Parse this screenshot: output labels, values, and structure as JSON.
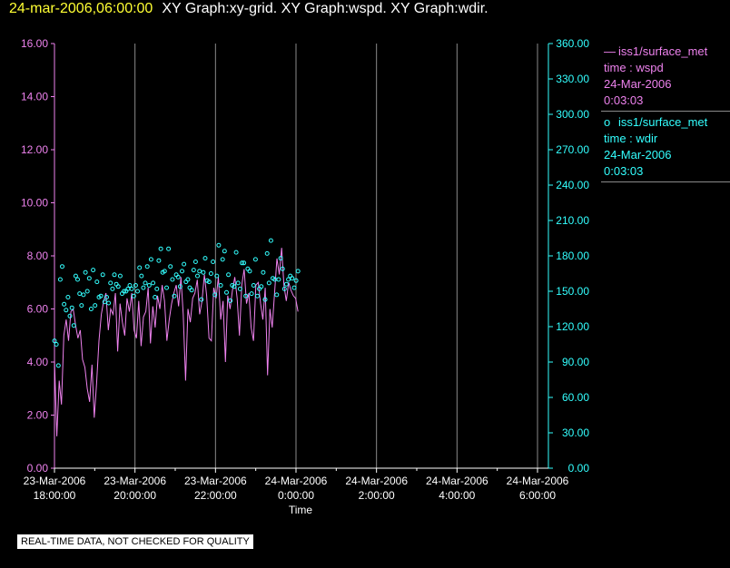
{
  "header": {
    "datetime": "24-mar-2006,06:00:00",
    "title": "XY Graph:xy-grid.  XY Graph:wspd.  XY Graph:wdir."
  },
  "legend": {
    "wspd": {
      "symbol": "—",
      "source": "iss1/surface_met",
      "param": "time : wspd",
      "date": "24-Mar-2006",
      "time": "0:03:03"
    },
    "wdir": {
      "symbol": "o",
      "source": "iss1/surface_met",
      "param": "time : wdir",
      "date": "24-Mar-2006",
      "time": "0:03:03"
    }
  },
  "disclaimer": "REAL-TIME DATA, NOT CHECKED FOR QUALITY",
  "colors": {
    "wspd": "#ee82ee",
    "wdir": "#33ffff",
    "background": "#000000",
    "grid": "#8a8a8a",
    "text": "#ffffff"
  },
  "chart_data": {
    "type": "line",
    "xlabel": "Time",
    "x_ticks": [
      {
        "hours": 0,
        "date": "23-Mar-2006",
        "time": "18:00:00"
      },
      {
        "hours": 2,
        "date": "23-Mar-2006",
        "time": "20:00:00"
      },
      {
        "hours": 4,
        "date": "23-Mar-2006",
        "time": "22:00:00"
      },
      {
        "hours": 6,
        "date": "24-Mar-2006",
        "time": "0:00:00"
      },
      {
        "hours": 8,
        "date": "24-Mar-2006",
        "time": "2:00:00"
      },
      {
        "hours": 10,
        "date": "24-Mar-2006",
        "time": "4:00:00"
      },
      {
        "hours": 12,
        "date": "24-Mar-2006",
        "time": "6:00:00"
      }
    ],
    "xlim": [
      0,
      12
    ],
    "y_left": {
      "range": [
        0,
        16
      ],
      "ticks": [
        "0.00",
        "2.00",
        "4.00",
        "6.00",
        "8.00",
        "10.00",
        "12.00",
        "14.00",
        "16.00"
      ]
    },
    "y_right": {
      "range": [
        0,
        360
      ],
      "ticks": [
        "0.00",
        "30.00",
        "60.00",
        "90.00",
        "120.00",
        "150.00",
        "180.00",
        "210.00",
        "240.00",
        "270.00",
        "300.00",
        "330.00",
        "360.00"
      ]
    },
    "grid": "vertical",
    "series": [
      {
        "name": "wspd",
        "axis": "left",
        "style": "line",
        "x_end": 6.05,
        "values": [
          4.1,
          1.2,
          3.3,
          2.4,
          5.0,
          5.6,
          4.8,
          5.9,
          6.0,
          5.4,
          4.9,
          5.2,
          4.1,
          3.8,
          3.0,
          2.5,
          3.9,
          1.9,
          3.2,
          4.8,
          5.8,
          6.3,
          6.6,
          5.2,
          6.0,
          5.8,
          6.6,
          4.4,
          6.2,
          5.5,
          5.0,
          6.4,
          5.9,
          6.6,
          5.2,
          4.9,
          6.3,
          4.6,
          5.7,
          5.9,
          6.8,
          4.7,
          6.1,
          5.3,
          6.5,
          6.0,
          6.9,
          6.3,
          4.8,
          5.6,
          6.2,
          6.6,
          6.9,
          6.1,
          7.2,
          5.8,
          3.3,
          6.0,
          5.5,
          6.4,
          6.6,
          7.1,
          5.8,
          6.3,
          7.3,
          6.5,
          4.9,
          4.8,
          6.8,
          6.4,
          7.2,
          5.6,
          6.3,
          4.0,
          6.5,
          6.0,
          6.7,
          7.2,
          6.4,
          5.0,
          6.9,
          7.5,
          6.2,
          6.6,
          5.3,
          4.8,
          6.9,
          7.0,
          6.2,
          5.6,
          6.8,
          3.5,
          6.0,
          5.3,
          6.6,
          7.9,
          7.3,
          8.3,
          6.9,
          6.3,
          7.0,
          6.7,
          6.5,
          6.4,
          5.9
        ]
      },
      {
        "name": "wdir",
        "axis": "right",
        "style": "markers",
        "x_end": 6.05,
        "values": [
          108,
          105,
          87,
          160,
          171,
          139,
          134,
          145,
          129,
          136,
          121,
          163,
          160,
          148,
          138,
          147,
          166,
          150,
          161,
          135,
          168,
          138,
          158,
          145,
          146,
          164,
          141,
          145,
          140,
          157,
          152,
          164,
          156,
          154,
          163,
          148,
          150,
          150,
          152,
          155,
          152,
          146,
          155,
          150,
          170,
          163,
          153,
          157,
          171,
          155,
          177,
          157,
          145,
          152,
          176,
          186,
          166,
          167,
          153,
          186,
          171,
          160,
          146,
          164,
          162,
          154,
          167,
          173,
          158,
          160,
          153,
          151,
          168,
          175,
          163,
          167,
          143,
          166,
          178,
          159,
          158,
          165,
          175,
          147,
          163,
          189,
          155,
          177,
          184,
          149,
          164,
          142,
          155,
          154,
          183,
          157,
          152,
          174,
          174,
          146,
          169,
          167,
          148,
          155,
          177,
          146,
          152,
          154,
          166,
          143,
          182,
          157,
          193,
          161,
          160,
          147,
          160,
          178,
          169,
          152,
          156,
          160,
          163,
          161,
          153,
          159,
          167
        ]
      }
    ]
  }
}
